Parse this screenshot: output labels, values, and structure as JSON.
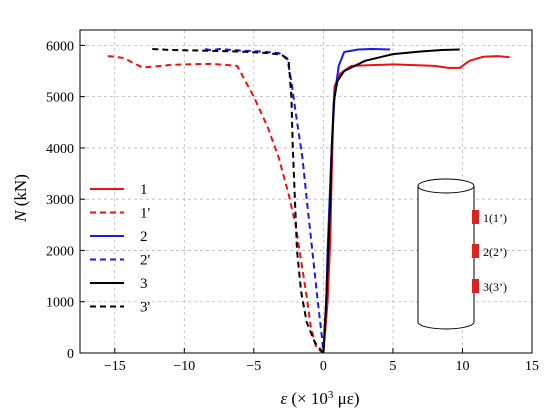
{
  "chart_data": {
    "type": "line",
    "xlim": [
      -17.5,
      15
    ],
    "ylim": [
      0,
      6300
    ],
    "x_ticks": [
      -15,
      -10,
      -5,
      0,
      5,
      10,
      15
    ],
    "y_ticks": [
      0,
      1000,
      2000,
      3000,
      4000,
      5000,
      6000
    ],
    "x_tick_labels": [
      "−15",
      "−10",
      "−5",
      "0",
      "5",
      "10",
      "15"
    ],
    "y_tick_labels": [
      "0",
      "1000",
      "2000",
      "3000",
      "4000",
      "5000",
      "6000"
    ],
    "xlabel": {
      "symbol": "ε",
      "text": " (× 10",
      "exp": "3",
      "unit": " με)"
    },
    "ylabel": {
      "symbol": "N",
      "unit": " (kN)"
    },
    "grid": true,
    "legend_position": "left-middle",
    "series": [
      {
        "name": "1",
        "color": "#ee1111",
        "dash": false,
        "points": [
          [
            0,
            0
          ],
          [
            0.3,
            1000
          ],
          [
            0.5,
            2200
          ],
          [
            0.6,
            3500
          ],
          [
            0.7,
            4500
          ],
          [
            0.8,
            5200
          ],
          [
            1.2,
            5450
          ],
          [
            2,
            5600
          ],
          [
            3,
            5610
          ],
          [
            4,
            5620
          ],
          [
            5,
            5630
          ],
          [
            6,
            5620
          ],
          [
            7,
            5610
          ],
          [
            8,
            5600
          ],
          [
            9,
            5560
          ],
          [
            9.8,
            5560
          ],
          [
            10.5,
            5700
          ],
          [
            11.5,
            5780
          ],
          [
            12.5,
            5790
          ],
          [
            13.4,
            5770
          ]
        ]
      },
      {
        "name": "1'",
        "color": "#ee1111",
        "dash": true,
        "points": [
          [
            -15.5,
            5790
          ],
          [
            -15,
            5780
          ],
          [
            -14.3,
            5750
          ],
          [
            -13.7,
            5660
          ],
          [
            -13,
            5570
          ],
          [
            -12,
            5590
          ],
          [
            -11,
            5620
          ],
          [
            -10,
            5630
          ],
          [
            -8,
            5640
          ],
          [
            -6.2,
            5600
          ],
          [
            -5,
            5000
          ],
          [
            -4,
            4400
          ],
          [
            -3.2,
            3800
          ],
          [
            -2.5,
            3100
          ],
          [
            -2,
            2500
          ],
          [
            -1.6,
            1800
          ],
          [
            -1.2,
            1100
          ],
          [
            -0.9,
            500
          ],
          [
            -0.5,
            100
          ],
          [
            0,
            0
          ]
        ]
      },
      {
        "name": "2",
        "color": "#1a1ae6",
        "dash": false,
        "points": [
          [
            0,
            0
          ],
          [
            0.2,
            1000
          ],
          [
            0.3,
            2000
          ],
          [
            0.45,
            3000
          ],
          [
            0.6,
            4000
          ],
          [
            0.8,
            5000
          ],
          [
            1.1,
            5600
          ],
          [
            1.5,
            5870
          ],
          [
            2.5,
            5920
          ],
          [
            3.5,
            5930
          ],
          [
            4.8,
            5920
          ]
        ]
      },
      {
        "name": "2'",
        "color": "#1a1ae6",
        "dash": true,
        "points": [
          [
            -8.5,
            5930
          ],
          [
            -8,
            5900
          ],
          [
            -7.5,
            5930
          ],
          [
            -6,
            5900
          ],
          [
            -4.5,
            5880
          ],
          [
            -3.2,
            5850
          ],
          [
            -2.6,
            5750
          ],
          [
            -2.3,
            5300
          ],
          [
            -2,
            4700
          ],
          [
            -1.5,
            3800
          ],
          [
            -1.2,
            3000
          ],
          [
            -0.8,
            2000
          ],
          [
            -0.4,
            1000
          ],
          [
            -0.1,
            300
          ],
          [
            0,
            0
          ]
        ]
      },
      {
        "name": "3",
        "color": "#000000",
        "dash": false,
        "points": [
          [
            0,
            0
          ],
          [
            0.2,
            1000
          ],
          [
            0.35,
            2000
          ],
          [
            0.5,
            3000
          ],
          [
            0.6,
            4000
          ],
          [
            0.75,
            4900
          ],
          [
            1,
            5300
          ],
          [
            1.5,
            5500
          ],
          [
            3,
            5700
          ],
          [
            5,
            5830
          ],
          [
            7,
            5880
          ],
          [
            8.5,
            5910
          ],
          [
            9.8,
            5920
          ]
        ]
      },
      {
        "name": "3'",
        "color": "#000000",
        "dash": true,
        "points": [
          [
            -12.3,
            5930
          ],
          [
            -11,
            5910
          ],
          [
            -9,
            5900
          ],
          [
            -6,
            5880
          ],
          [
            -4,
            5850
          ],
          [
            -3,
            5820
          ],
          [
            -2.5,
            5700
          ],
          [
            -2.3,
            5000
          ],
          [
            -2.2,
            4000
          ],
          [
            -2.05,
            3000
          ],
          [
            -1.9,
            2000
          ],
          [
            -1.6,
            1200
          ],
          [
            -1.2,
            600
          ],
          [
            -0.6,
            200
          ],
          [
            0,
            0
          ]
        ]
      }
    ],
    "inset": {
      "labels": [
        "1(1’)",
        "2(2’)",
        "3(3’)"
      ],
      "marker_color": "#dd2222"
    }
  }
}
